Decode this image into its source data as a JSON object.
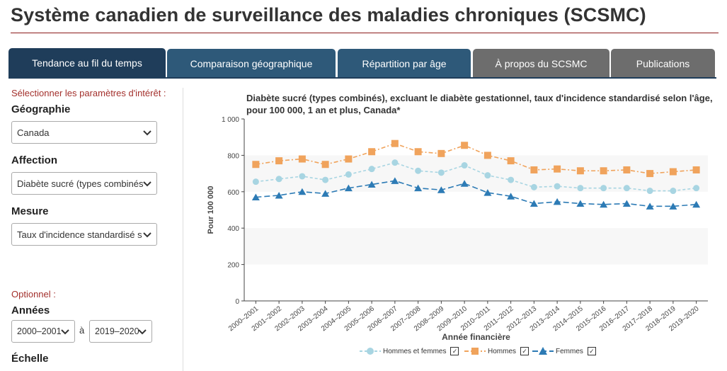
{
  "page": {
    "title": "Système canadien de surveillance des maladies chroniques (SCSMC)"
  },
  "tabs": [
    {
      "label": "Tendance au fil du temps"
    },
    {
      "label": "Comparaison géographique"
    },
    {
      "label": "Répartition par âge"
    },
    {
      "label": "À propos du SCSMC"
    },
    {
      "label": "Publications"
    }
  ],
  "sidebar": {
    "hint": "Sélectionner les paramètres d'intérêt :",
    "geography": {
      "label": "Géographie",
      "value": "Canada"
    },
    "condition": {
      "label": "Affection",
      "value": "Diabète sucré (types combinés"
    },
    "measure": {
      "label": "Mesure",
      "value": "Taux d'incidence standardisé s"
    },
    "optional": "Optionnel :",
    "years": {
      "label": "Années",
      "from": "2000–2001",
      "sep": "à",
      "to": "2019–2020"
    },
    "scale": {
      "label": "Échelle"
    }
  },
  "colors": {
    "both": "#a8d5e2",
    "men": "#f0a35c",
    "women": "#2d7bb5"
  },
  "chart_data": {
    "type": "line",
    "title": "Diabète sucré (types combinés), excluant le diabète gestationnel, taux d'incidence standardisé selon l'âge, pour 100 000, 1 an et plus, Canada*",
    "xlabel": "Année financière",
    "ylabel": "Pour 100 000",
    "ylim": [
      0,
      1000
    ],
    "yticks": [
      "0",
      "200",
      "400",
      "600",
      "800",
      "1 000"
    ],
    "categories": [
      "2000–2001",
      "2001–2002",
      "2002–2003",
      "2003–2004",
      "2004–2005",
      "2005–2006",
      "2006–2007",
      "2007–2008",
      "2008–2009",
      "2009–2010",
      "2010–2011",
      "2011–2012",
      "2012–2013",
      "2013–2014",
      "2014–2015",
      "2015–2016",
      "2016–2017",
      "2017–2018",
      "2018–2019",
      "2019–2020"
    ],
    "series": [
      {
        "name": "Hommes et femmes",
        "values": [
          655,
          670,
          685,
          665,
          695,
          725,
          760,
          715,
          705,
          745,
          690,
          665,
          625,
          630,
          620,
          620,
          620,
          605,
          605,
          620
        ]
      },
      {
        "name": "Hommes",
        "values": [
          750,
          770,
          780,
          750,
          780,
          820,
          865,
          820,
          810,
          855,
          800,
          770,
          720,
          725,
          715,
          715,
          720,
          700,
          710,
          720
        ]
      },
      {
        "name": "Femmes",
        "values": [
          570,
          580,
          600,
          590,
          620,
          640,
          660,
          620,
          610,
          645,
          595,
          575,
          535,
          545,
          535,
          530,
          535,
          520,
          520,
          530
        ]
      }
    ],
    "legend_checks": [
      "✓",
      "✓",
      "✓"
    ]
  }
}
